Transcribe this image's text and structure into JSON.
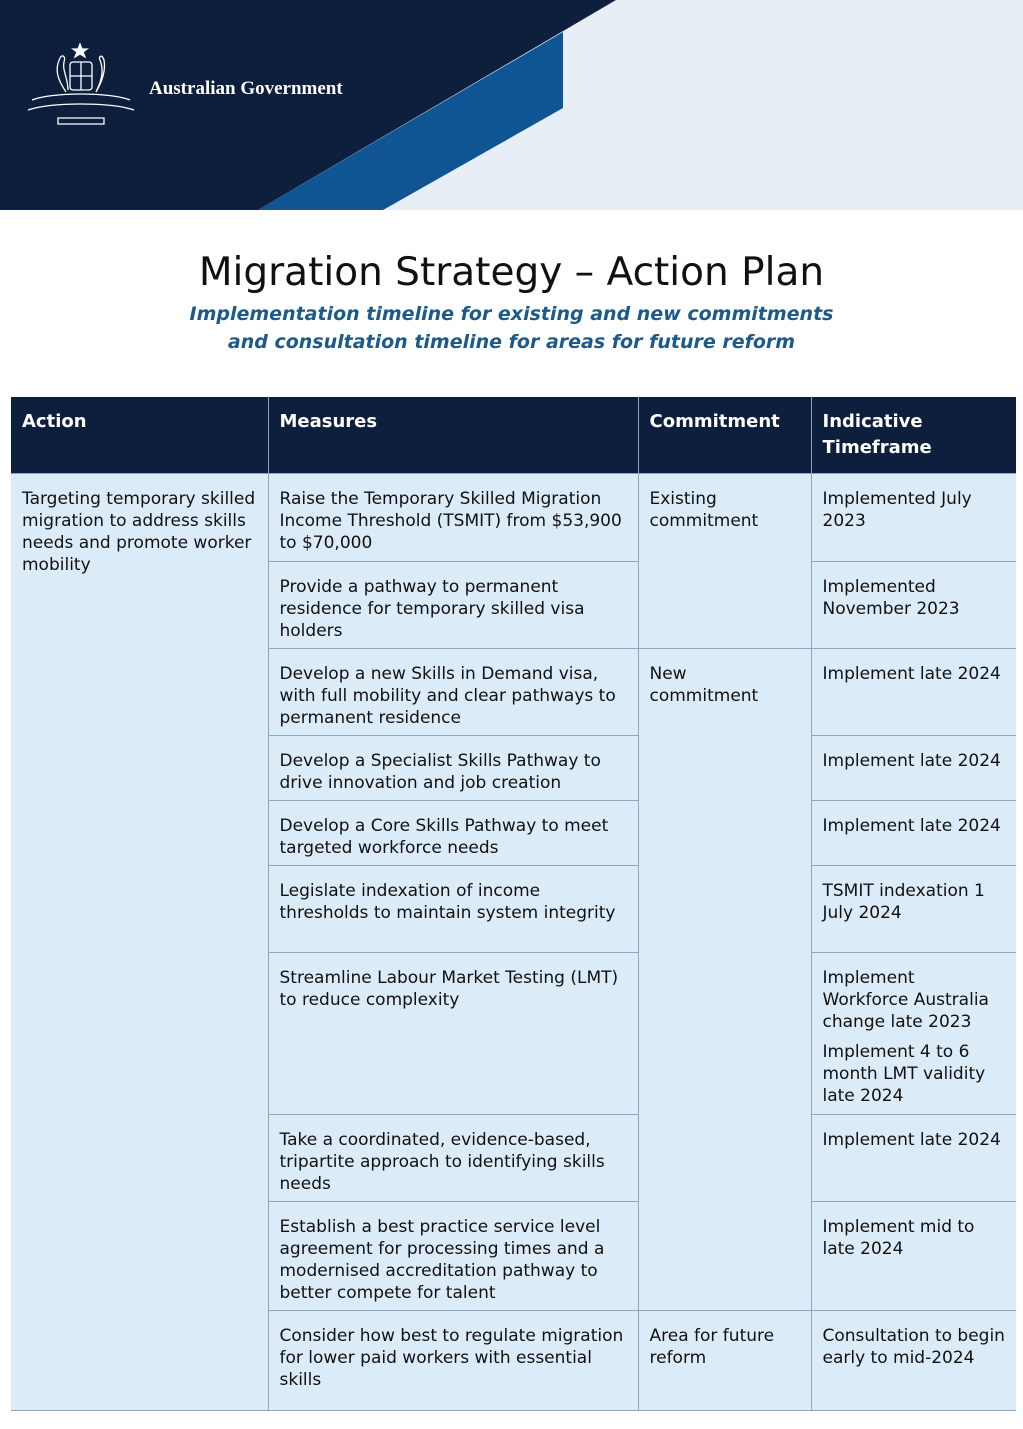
{
  "header": {
    "organisation": "Australian Government",
    "crest_icon": "commonwealth-coat-of-arms",
    "colors": {
      "navy": "#0e1f3e",
      "blue": "#0f5493",
      "light": "#e8eef6"
    }
  },
  "title": "Migration Strategy – Action Plan",
  "subtitle_line1": "Implementation timeline for existing and new commitments",
  "subtitle_line2": "and consultation timeline for areas for future reform",
  "table": {
    "headers": [
      "Action",
      "Measures",
      "Commitment",
      "Indicative Timeframe"
    ],
    "action": "Targeting temporary skilled migration to address skills needs and promote worker mobility",
    "commitments": [
      "Existing commitment",
      "New commitment",
      "Area for future reform"
    ],
    "rows": [
      {
        "measure": "Raise the Temporary Skilled Migration Income Threshold (TSMIT) from $53,900 to $70,000",
        "timeframe": "Implemented July 2023"
      },
      {
        "measure": "Provide a pathway to permanent residence for temporary skilled visa holders",
        "timeframe": "Implemented November 2023"
      },
      {
        "measure": "Develop a new Skills in Demand visa, with full mobility and clear pathways to permanent residence",
        "timeframe": "Implement late 2024"
      },
      {
        "measure": "Develop a Specialist Skills Pathway to drive innovation and job creation",
        "timeframe": "Implement late 2024"
      },
      {
        "measure": "Develop a Core Skills Pathway to meet targeted workforce needs",
        "timeframe": "Implement late 2024"
      },
      {
        "measure": "Legislate indexation of income thresholds to maintain system integrity",
        "timeframe": "TSMIT indexation 1 July 2024"
      },
      {
        "measure": "Streamline Labour Market Testing (LMT) to reduce complexity",
        "timeframe": "Implement Workforce Australia change late 2023",
        "timeframe2": "Implement 4 to 6 month LMT validity late 2024"
      },
      {
        "measure": "Take a coordinated, evidence-based, tripartite approach to identifying skills needs",
        "timeframe": "Implement late 2024"
      },
      {
        "measure": "Establish a best practice service level agreement for processing times and a modernised accreditation pathway to better compete for talent",
        "timeframe": "Implement mid to late 2024"
      },
      {
        "measure": "Consider how best to regulate migration for lower paid workers with essential skills",
        "timeframe": "Consultation to begin early to mid-2024"
      }
    ]
  }
}
